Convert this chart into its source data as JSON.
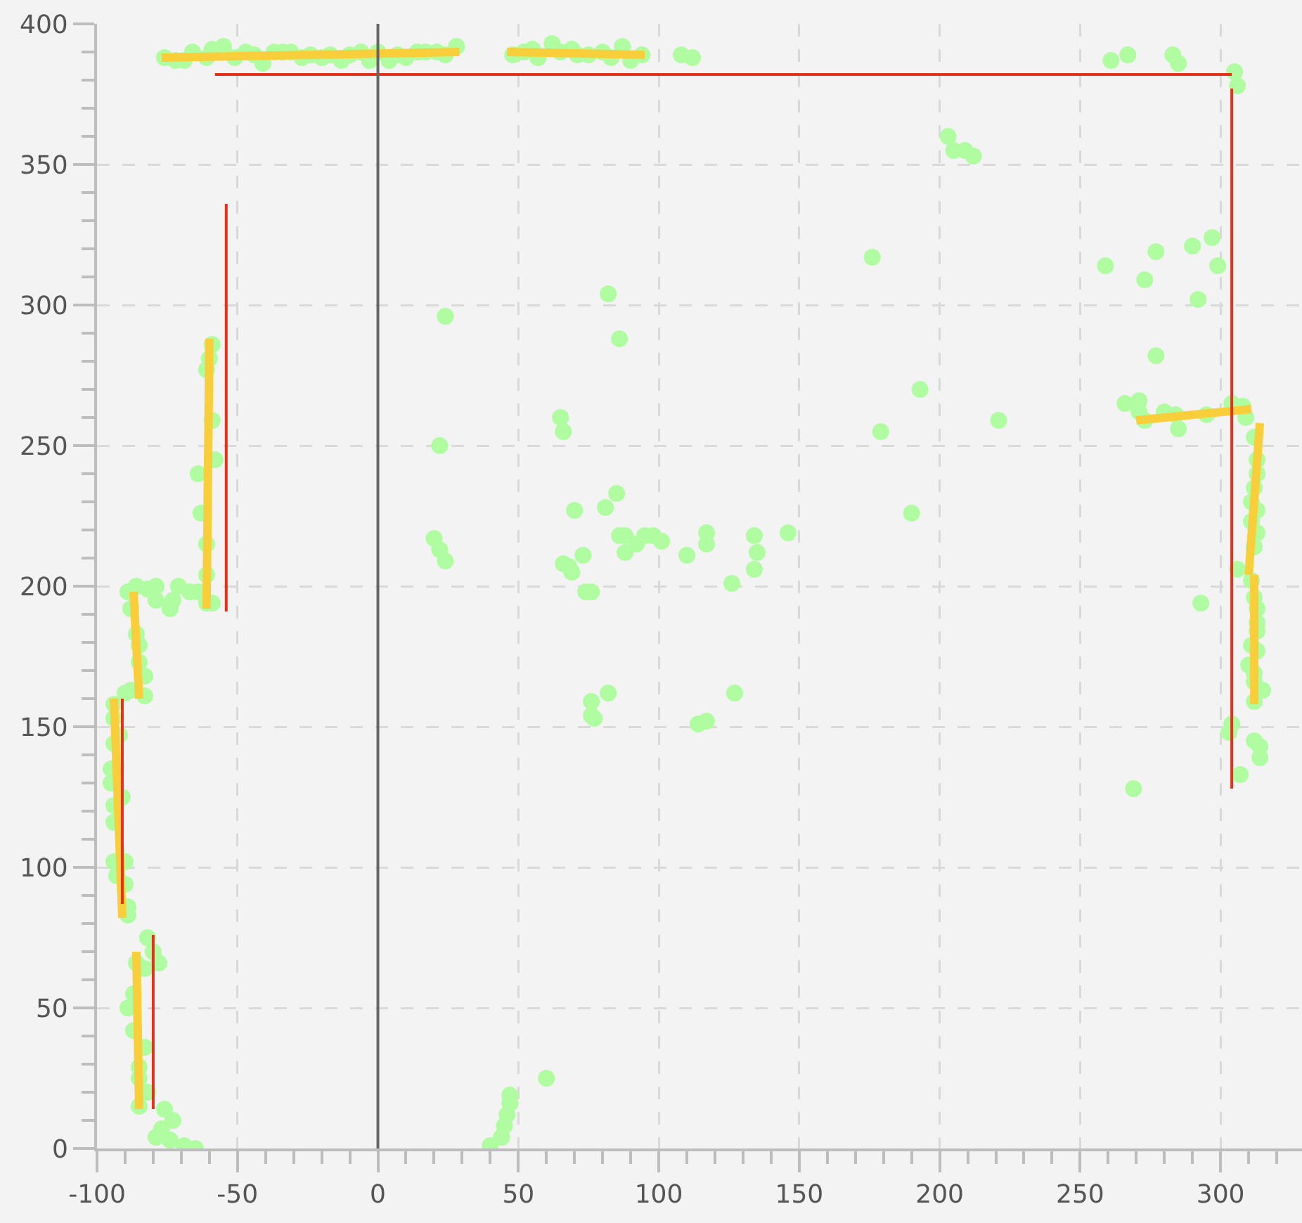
{
  "chart_data": {
    "type": "scatter",
    "xlim": [
      -100,
      329
    ],
    "ylim": [
      0,
      400
    ],
    "xticks": [
      -100,
      {
        "value": -90,
        "label": null
      },
      {
        "value": -80,
        "label": null
      },
      {
        "value": -70,
        "label": null
      },
      {
        "value": -60,
        "label": null
      },
      -50,
      {
        "value": -40,
        "label": null
      },
      {
        "value": -30,
        "label": null
      },
      {
        "value": -20,
        "label": null
      },
      {
        "value": -10,
        "label": null
      },
      0,
      {
        "value": 10,
        "label": null
      },
      {
        "value": 20,
        "label": null
      },
      {
        "value": 30,
        "label": null
      },
      {
        "value": 40,
        "label": null
      },
      50,
      {
        "value": 60,
        "label": null
      },
      {
        "value": 70,
        "label": null
      },
      {
        "value": 80,
        "label": null
      },
      {
        "value": 90,
        "label": null
      },
      100,
      {
        "value": 110,
        "label": null
      },
      {
        "value": 120,
        "label": null
      },
      {
        "value": 130,
        "label": null
      },
      {
        "value": 140,
        "label": null
      },
      150,
      {
        "value": 160,
        "label": null
      },
      {
        "value": 170,
        "label": null
      },
      {
        "value": 180,
        "label": null
      },
      {
        "value": 190,
        "label": null
      },
      200,
      {
        "value": 210,
        "label": null
      },
      {
        "value": 220,
        "label": null
      },
      {
        "value": 230,
        "label": null
      },
      {
        "value": 240,
        "label": null
      },
      250,
      {
        "value": 260,
        "label": null
      },
      {
        "value": 270,
        "label": null
      },
      {
        "value": 280,
        "label": null
      },
      {
        "value": 290,
        "label": null
      },
      300,
      {
        "value": 310,
        "label": null
      },
      {
        "value": 320,
        "label": null
      }
    ],
    "yticks": [
      0,
      {
        "value": 10,
        "label": null
      },
      {
        "value": 20,
        "label": null
      },
      {
        "value": 30,
        "label": null
      },
      {
        "value": 40,
        "label": null
      },
      50,
      {
        "value": 60,
        "label": null
      },
      {
        "value": 70,
        "label": null
      },
      {
        "value": 80,
        "label": null
      },
      {
        "value": 90,
        "label": null
      },
      100,
      {
        "value": 110,
        "label": null
      },
      {
        "value": 120,
        "label": null
      },
      {
        "value": 130,
        "label": null
      },
      {
        "value": 140,
        "label": null
      },
      150,
      {
        "value": 160,
        "label": null
      },
      {
        "value": 170,
        "label": null
      },
      {
        "value": 180,
        "label": null
      },
      {
        "value": 190,
        "label": null
      },
      200,
      {
        "value": 210,
        "label": null
      },
      {
        "value": 220,
        "label": null
      },
      {
        "value": 230,
        "label": null
      },
      {
        "value": 240,
        "label": null
      },
      250,
      {
        "value": 260,
        "label": null
      },
      {
        "value": 270,
        "label": null
      },
      {
        "value": 280,
        "label": null
      },
      {
        "value": 290,
        "label": null
      },
      300,
      {
        "value": 310,
        "label": null
      },
      {
        "value": 320,
        "label": null
      },
      {
        "value": 330,
        "label": null
      },
      {
        "value": 340,
        "label": null
      },
      350,
      {
        "value": 360,
        "label": null
      },
      {
        "value": 370,
        "label": null
      },
      {
        "value": 380,
        "label": null
      },
      {
        "value": 390,
        "label": null
      },
      400
    ],
    "grid": true,
    "marker": "circle",
    "ref_lines": [
      {
        "axis": "x",
        "value": 0,
        "color": "#666666"
      }
    ],
    "series": [
      {
        "color": "#b0fca0",
        "x": [
          -76,
          -72,
          -69,
          -66,
          -61,
          -59,
          -55,
          -51,
          -47,
          -44,
          -41,
          -37,
          -34,
          -31,
          -27,
          -24,
          -20,
          -17,
          -13,
          -10,
          -6,
          -3,
          0,
          4,
          7,
          10,
          14,
          17,
          21,
          24,
          28,
          48,
          52,
          55,
          57,
          62,
          65,
          69,
          71,
          75,
          80,
          83,
          87,
          90,
          94,
          108,
          112,
          261,
          267,
          283,
          285,
          305,
          306,
          203,
          205,
          209,
          212,
          176,
          82,
          86,
          193,
          65,
          66,
          24,
          22,
          20,
          22,
          24,
          179,
          190,
          85,
          70,
          81,
          86,
          88,
          88,
          92,
          95,
          98,
          101,
          110,
          117,
          117,
          134,
          135,
          134,
          146,
          126,
          66,
          68,
          69,
          73,
          74,
          76,
          82,
          76,
          76,
          77,
          127,
          114,
          117,
          60,
          221,
          259,
          273,
          277,
          290,
          297,
          299,
          292,
          277,
          269,
          40,
          44,
          45,
          46,
          47,
          47,
          -59,
          -60,
          -61,
          -59,
          -58,
          -64,
          -63,
          -61,
          -61,
          -61,
          -59,
          -89,
          -86,
          -88,
          -82,
          -79,
          -79,
          -74,
          -73,
          -71,
          -67,
          -64,
          -86,
          -85,
          -85,
          -83,
          -83,
          -88,
          -90,
          -94,
          -94,
          -94,
          -95,
          -95,
          -94,
          -94,
          -92,
          -91,
          -94,
          -90,
          -93,
          -90,
          -89,
          -89,
          -82,
          -80,
          -78,
          -86,
          -83,
          -87,
          -89,
          -87,
          -83,
          -85,
          -85,
          -82,
          -85,
          -76,
          -73,
          -79,
          -77,
          -74,
          -69,
          -65,
          266,
          271,
          271,
          273,
          280,
          284,
          285,
          295,
          304,
          308,
          309,
          312,
          313,
          313,
          312,
          311,
          313,
          311,
          313,
          312,
          306,
          311,
          312,
          313,
          313,
          313,
          311,
          313,
          310,
          312,
          312,
          315,
          312,
          293,
          304,
          303,
          312,
          314,
          314,
          307
        ],
        "values": [
          388,
          387,
          387,
          390,
          388,
          391,
          392,
          388,
          390,
          389,
          386,
          390,
          390,
          390,
          388,
          389,
          388,
          389,
          387,
          389,
          390,
          387,
          390,
          387,
          389,
          388,
          390,
          390,
          390,
          389,
          392,
          389,
          390,
          391,
          388,
          393,
          390,
          391,
          389,
          389,
          390,
          388,
          392,
          387,
          389,
          389,
          388,
          387,
          389,
          389,
          386,
          383,
          378,
          360,
          355,
          355,
          353,
          317,
          304,
          288,
          270,
          260,
          255,
          296,
          250,
          217,
          213,
          209,
          255,
          226,
          233,
          227,
          228,
          218,
          218,
          212,
          215,
          218,
          218,
          216,
          211,
          219,
          215,
          218,
          212,
          206,
          219,
          201,
          208,
          207,
          205,
          211,
          198,
          198,
          162,
          159,
          154,
          153,
          162,
          151,
          152,
          25,
          259,
          314,
          309,
          319,
          321,
          324,
          314,
          302,
          282,
          128,
          1,
          4,
          8,
          12,
          16,
          19,
          286,
          281,
          277,
          259,
          245,
          240,
          226,
          215,
          204,
          194,
          194,
          198,
          200,
          192,
          199,
          200,
          195,
          192,
          195,
          200,
          198,
          198,
          183,
          179,
          173,
          168,
          161,
          163,
          162,
          158,
          153,
          144,
          135,
          130,
          122,
          116,
          147,
          125,
          102,
          102,
          97,
          94,
          86,
          83,
          75,
          70,
          66,
          66,
          64,
          55,
          50,
          42,
          36,
          29,
          25,
          20,
          15,
          14,
          10,
          4,
          7,
          3,
          1,
          0,
          265,
          266,
          262,
          259,
          262,
          261,
          256,
          261,
          265,
          264,
          260,
          253,
          245,
          240,
          235,
          230,
          227,
          223,
          219,
          214,
          206,
          202,
          196,
          192,
          187,
          184,
          179,
          177,
          172,
          169,
          166,
          163,
          159,
          194,
          151,
          148,
          145,
          143,
          139,
          133
        ]
      },
      {
        "type": "line",
        "color": "#f8cf3a",
        "marker": "none",
        "x": [
          -77,
          29,
          null,
          46,
          95,
          null,
          -60,
          -61,
          null,
          -87,
          -85,
          null,
          -94,
          -91,
          null,
          -86,
          -85,
          null,
          270,
          311,
          null,
          314,
          310,
          null,
          312,
          312
        ],
        "values": [
          388,
          390,
          null,
          390,
          389,
          null,
          288,
          192,
          null,
          198,
          160,
          null,
          160,
          82,
          null,
          70,
          14,
          null,
          259,
          263,
          null,
          258,
          204,
          null,
          204,
          158
        ]
      },
      {
        "type": "line",
        "color": "#e8311a",
        "marker": "none",
        "x": [
          -58,
          304,
          null,
          304,
          304,
          null,
          -54,
          -54,
          null,
          -91,
          -91,
          null,
          -80,
          -80
        ],
        "values": [
          382,
          382,
          null,
          377,
          128,
          null,
          336,
          191,
          null,
          160,
          87,
          null,
          76,
          14
        ]
      }
    ]
  }
}
